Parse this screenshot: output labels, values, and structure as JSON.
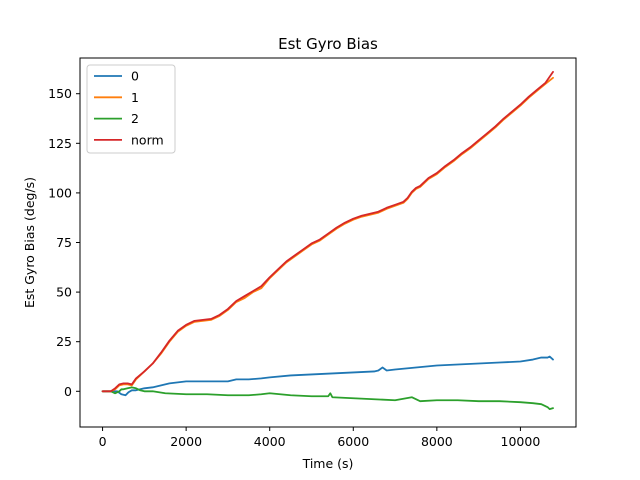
{
  "chart_data": {
    "type": "line",
    "title": "Est Gyro Bias",
    "xlabel": "Time (s)",
    "ylabel": "Est Gyro Bias (deg/s)",
    "xlim": [
      -540,
      11330
    ],
    "ylim": [
      -18,
      168
    ],
    "xticks": [
      0,
      2000,
      4000,
      6000,
      8000,
      10000
    ],
    "yticks": [
      0,
      25,
      50,
      75,
      100,
      125,
      150
    ],
    "grid": false,
    "legend_position": "top-left",
    "series": [
      {
        "name": "0",
        "color": "#1f77b4",
        "x": [
          0,
          200,
          350,
          450,
          550,
          620,
          700,
          800,
          900,
          1000,
          1200,
          1400,
          1600,
          1800,
          2000,
          2500,
          3000,
          3200,
          3500,
          3800,
          4000,
          4500,
          5000,
          5500,
          6000,
          6500,
          6600,
          6700,
          6800,
          7000,
          7500,
          8000,
          8500,
          9000,
          9500,
          10000,
          10300,
          10500,
          10650,
          10700,
          10780
        ],
        "y": [
          0,
          0,
          0,
          -1.5,
          -2,
          -0.5,
          0.5,
          0.5,
          1,
          1.5,
          2,
          3,
          4,
          4.5,
          5,
          5,
          5,
          6,
          6,
          6.5,
          7,
          8,
          8.5,
          9,
          9.5,
          10,
          10.5,
          12,
          10.5,
          11,
          12,
          13,
          13.5,
          14,
          14.5,
          15,
          16,
          17,
          17,
          17.5,
          16
        ]
      },
      {
        "name": "1",
        "color": "#ff7f0e",
        "x": [
          0,
          200,
          300,
          400,
          500,
          600,
          700,
          800,
          1000,
          1200,
          1400,
          1600,
          1800,
          2000,
          2200,
          2400,
          2600,
          2800,
          3000,
          3200,
          3400,
          3600,
          3800,
          4000,
          4200,
          4400,
          4600,
          4800,
          5000,
          5200,
          5400,
          5600,
          5800,
          6000,
          6200,
          6400,
          6600,
          6800,
          7000,
          7200,
          7300,
          7400,
          7500,
          7600,
          7800,
          8000,
          8200,
          8400,
          8600,
          8800,
          9000,
          9200,
          9400,
          9600,
          9800,
          10000,
          10200,
          10400,
          10600,
          10780
        ],
        "y": [
          0,
          0,
          1,
          3,
          3.5,
          3.5,
          3,
          6,
          10,
          14,
          19,
          25,
          30,
          33,
          35,
          35.5,
          36,
          38,
          41,
          45,
          47,
          50,
          52,
          57,
          61,
          65,
          68,
          71,
          74,
          76,
          79,
          82,
          84.5,
          86.5,
          88,
          89,
          90,
          92,
          93.5,
          95,
          97,
          100,
          102,
          103,
          107,
          109.5,
          113,
          116,
          119.5,
          122.5,
          126,
          129.5,
          133,
          137,
          140.5,
          144,
          148,
          151.5,
          155,
          158
        ]
      },
      {
        "name": "2",
        "color": "#2ca02c",
        "x": [
          0,
          200,
          300,
          400,
          450,
          500,
          600,
          700,
          800,
          900,
          1000,
          1200,
          1500,
          2000,
          2500,
          3000,
          3500,
          3800,
          4000,
          4500,
          5000,
          5400,
          5450,
          5500,
          6000,
          6500,
          7000,
          7400,
          7500,
          7600,
          8000,
          8500,
          9000,
          9500,
          10000,
          10300,
          10500,
          10650,
          10700,
          10780
        ],
        "y": [
          0,
          0,
          -1,
          0,
          1,
          1,
          1.5,
          2,
          1.5,
          0.5,
          0,
          0,
          -1,
          -1.5,
          -1.5,
          -2,
          -2,
          -1.5,
          -1,
          -2,
          -2.5,
          -2.5,
          -1,
          -3,
          -3.5,
          -4,
          -4.5,
          -3,
          -4,
          -5,
          -4.5,
          -4.5,
          -5,
          -5,
          -5.5,
          -6,
          -6.5,
          -8,
          -9,
          -8.5
        ]
      },
      {
        "name": "norm",
        "color": "#d62728",
        "x": [
          0,
          200,
          300,
          400,
          500,
          600,
          700,
          800,
          1000,
          1200,
          1400,
          1600,
          1800,
          2000,
          2200,
          2400,
          2600,
          2800,
          3000,
          3200,
          3400,
          3600,
          3800,
          4000,
          4200,
          4400,
          4600,
          4800,
          5000,
          5200,
          5400,
          5600,
          5800,
          6000,
          6200,
          6400,
          6600,
          6800,
          7000,
          7200,
          7300,
          7400,
          7500,
          7600,
          7800,
          8000,
          8200,
          8400,
          8600,
          8800,
          9000,
          9200,
          9400,
          9600,
          9800,
          10000,
          10200,
          10400,
          10600,
          10780
        ],
        "y": [
          0,
          0,
          1.5,
          3.5,
          4,
          4,
          3.5,
          6.5,
          10,
          14,
          19.5,
          25.5,
          30.5,
          33.5,
          35.5,
          36,
          36.5,
          38.5,
          41.5,
          45.5,
          48,
          50.5,
          53,
          57.5,
          61.5,
          65.5,
          68.5,
          71.5,
          74.5,
          76.5,
          79.5,
          82.5,
          85,
          87,
          88.5,
          89.5,
          90.5,
          92.5,
          94,
          95.5,
          97.5,
          100.5,
          102.5,
          103.5,
          107.5,
          110,
          113.5,
          116.5,
          120,
          123,
          126.5,
          130,
          133.5,
          137.5,
          141,
          144.5,
          148.5,
          152,
          155.5,
          161
        ]
      }
    ]
  }
}
